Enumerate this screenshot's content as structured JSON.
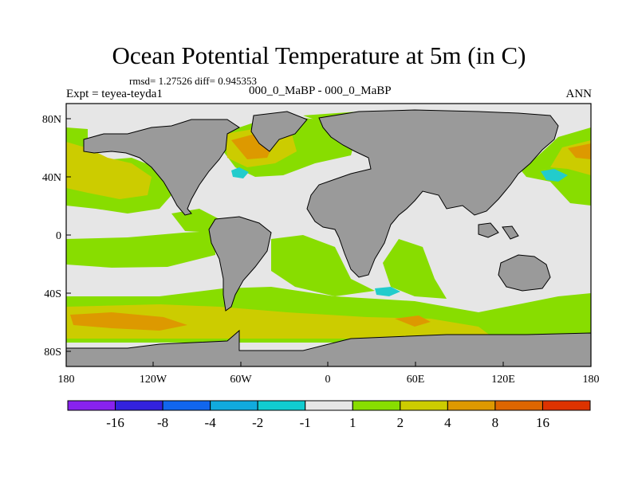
{
  "figure": {
    "title": "Ocean Potential Temperature at 5m (in C)",
    "stats": "rmsd= 1.27526 diff= 0.945353",
    "experiment": "Expt = teyea-teyda1",
    "comparison": "000_0_MaBP - 000_0_MaBP",
    "season": "ANN"
  },
  "map": {
    "y_ticks": [
      "80N",
      "40N",
      "0",
      "40S",
      "80S"
    ],
    "x_ticks": [
      "180",
      "120W",
      "60W",
      "0",
      "60E",
      "120E",
      "180"
    ],
    "colors": {
      "land": "#9a9a9a",
      "neutral": "#e6e6e6",
      "green": "#88dd00",
      "yellow": "#cccc00",
      "orange": "#dd9900",
      "cyan": "#22cccc"
    }
  },
  "colorbar": {
    "boundaries": [
      "-16",
      "-8",
      "-4",
      "-2",
      "-1",
      "1",
      "2",
      "4",
      "8",
      "16"
    ],
    "colors": [
      "#8822ee",
      "#3322dd",
      "#1166ee",
      "#11aadd",
      "#11ccd0",
      "#e6e6e6",
      "#88dd00",
      "#cccc00",
      "#dd9900",
      "#dd6600",
      "#dd3300"
    ]
  }
}
